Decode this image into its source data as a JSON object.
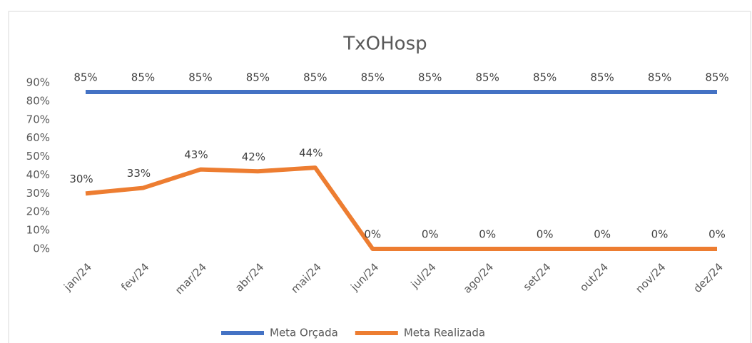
{
  "chart_data": {
    "type": "line",
    "title": "TxOHosp",
    "categories": [
      "jan/24",
      "fev/24",
      "mar/24",
      "abr/24",
      "mai/24",
      "jun/24",
      "jul/24",
      "ago/24",
      "set/24",
      "out/24",
      "nov/24",
      "dez/24"
    ],
    "series": [
      {
        "name": "Meta Orçada",
        "color": "#4472c4",
        "values": [
          85,
          85,
          85,
          85,
          85,
          85,
          85,
          85,
          85,
          85,
          85,
          85
        ],
        "value_labels": [
          "85%",
          "85%",
          "85%",
          "85%",
          "85%",
          "85%",
          "85%",
          "85%",
          "85%",
          "85%",
          "85%",
          "85%"
        ]
      },
      {
        "name": "Meta Realizada",
        "color": "#ed7d31",
        "values": [
          30,
          33,
          43,
          42,
          44,
          0,
          0,
          0,
          0,
          0,
          0,
          0
        ],
        "value_labels": [
          "30%",
          "33%",
          "43%",
          "42%",
          "44%",
          "0%",
          "0%",
          "0%",
          "0%",
          "0%",
          "0%",
          "0%"
        ]
      }
    ],
    "ylim": [
      0,
      90
    ],
    "yticks": [
      {
        "value": 0,
        "label": "0%"
      },
      {
        "value": 10,
        "label": "10%"
      },
      {
        "value": 20,
        "label": "20%"
      },
      {
        "value": 30,
        "label": "30%"
      },
      {
        "value": 40,
        "label": "40%"
      },
      {
        "value": 50,
        "label": "50%"
      },
      {
        "value": 60,
        "label": "60%"
      },
      {
        "value": 70,
        "label": "70%"
      },
      {
        "value": 80,
        "label": "80%"
      },
      {
        "value": 90,
        "label": "90%"
      }
    ],
    "grid": false,
    "legend": "bottom"
  }
}
